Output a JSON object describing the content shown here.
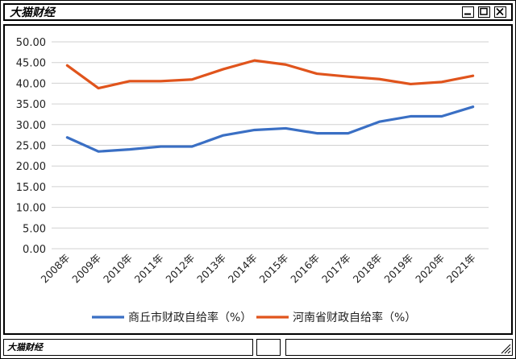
{
  "window": {
    "title": "大猫财经",
    "status_label": "大猫财经"
  },
  "colors": {
    "series1": "#3a6fc4",
    "series2": "#e0541c",
    "grid": "#d0d0d0"
  },
  "chart_data": {
    "type": "line",
    "title": "",
    "xlabel": "",
    "ylabel": "",
    "ylim": [
      0,
      50
    ],
    "grid": true,
    "legend_position": "bottom",
    "y_ticks": [
      "0.00",
      "5.00",
      "10.00",
      "15.00",
      "20.00",
      "25.00",
      "30.00",
      "35.00",
      "40.00",
      "45.00",
      "50.00"
    ],
    "categories": [
      "2008年",
      "2009年",
      "2010年",
      "2011年",
      "2012年",
      "2013年",
      "2014年",
      "2015年",
      "2016年",
      "2017年",
      "2018年",
      "2019年",
      "2020年",
      "2021年"
    ],
    "series": [
      {
        "name": "商丘市财政自给率（%）",
        "values": [
          26.9,
          23.5,
          24.0,
          24.7,
          24.7,
          27.4,
          28.7,
          29.1,
          27.9,
          27.9,
          30.7,
          32.0,
          32.0,
          34.3
        ]
      },
      {
        "name": "河南省财政自给率（%）",
        "values": [
          44.3,
          38.8,
          40.5,
          40.5,
          40.9,
          43.4,
          45.5,
          44.5,
          42.3,
          41.6,
          41.0,
          39.8,
          40.3,
          41.8
        ]
      }
    ]
  }
}
